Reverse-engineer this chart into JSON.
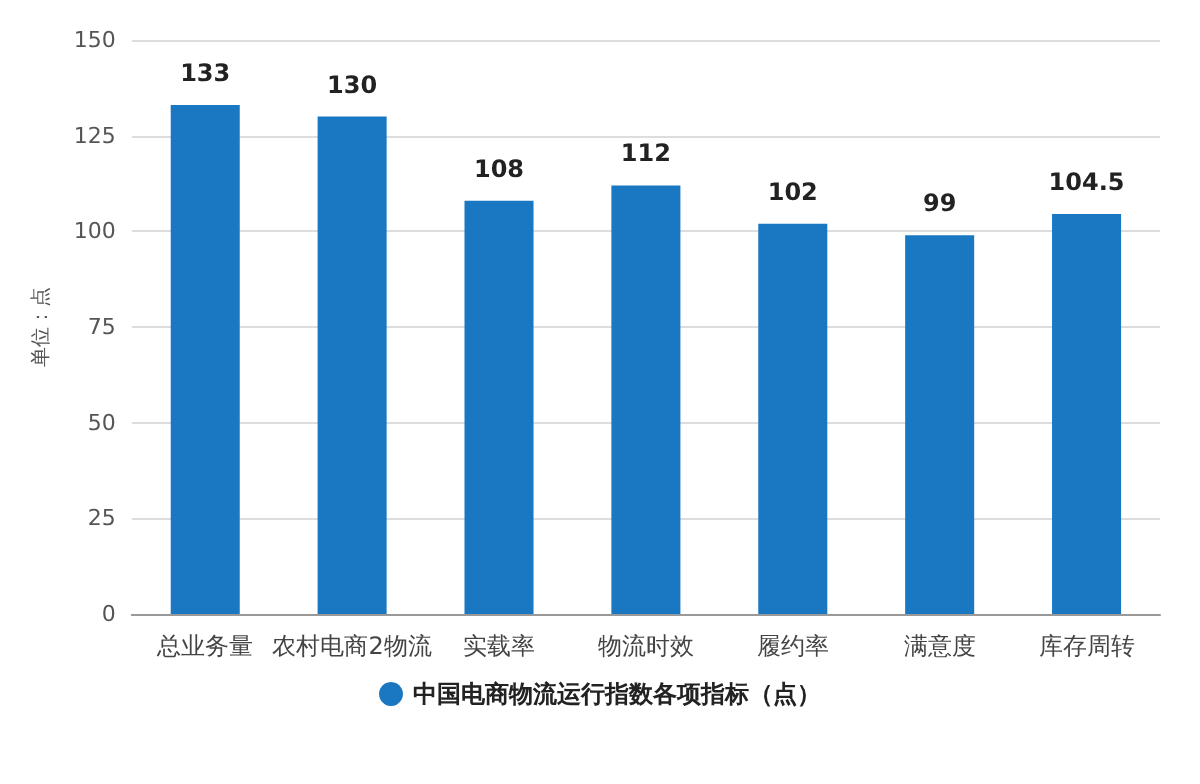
{
  "chart_data": {
    "type": "bar",
    "ylabel": "单位：点",
    "categories": [
      "总业务量",
      "农村电商2物流",
      "实载率",
      "物流时效",
      "履约率",
      "满意度",
      "库存周转"
    ],
    "series": [
      {
        "name": "中国电商物流运行指数各项指标（点）",
        "color": "#1a78c2",
        "values": [
          133,
          130,
          108,
          112,
          102,
          99,
          104.5
        ]
      }
    ],
    "ylim": [
      0,
      150
    ],
    "yticks": [
      0,
      25,
      50,
      75,
      100,
      125,
      150
    ],
    "grid": "y",
    "legend": "bottom",
    "data_labels": true
  }
}
